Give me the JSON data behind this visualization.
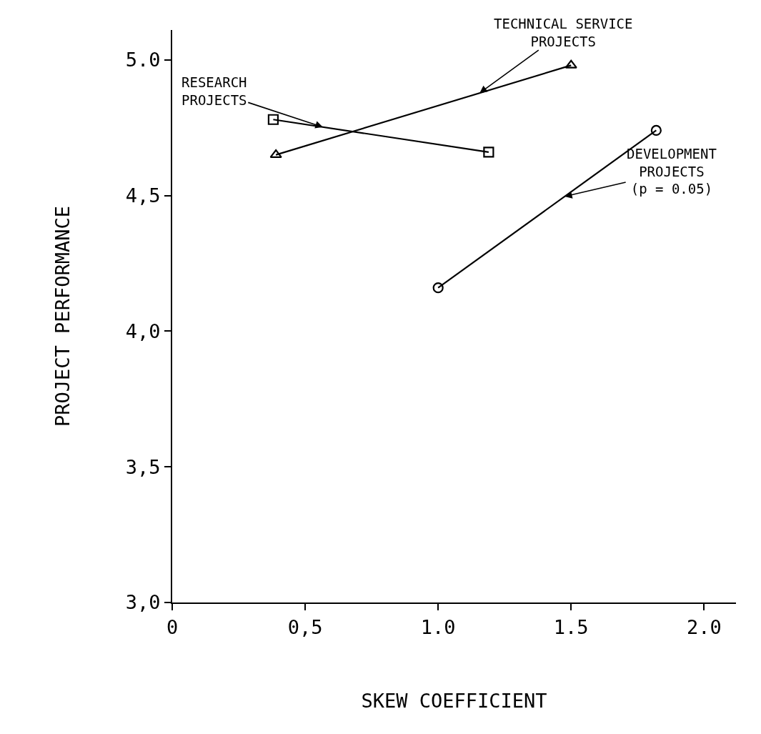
{
  "chart_data": {
    "type": "line",
    "xlabel": "SKEW COEFFICIENT",
    "ylabel": "PROJECT PERFORMANCE",
    "xlim": [
      0,
      2.12
    ],
    "ylim": [
      3.0,
      5.11
    ],
    "xticks": [
      {
        "value": 0,
        "label": "0"
      },
      {
        "value": 0.5,
        "label": "0,5"
      },
      {
        "value": 1.0,
        "label": "1.0"
      },
      {
        "value": 1.5,
        "label": "1.5"
      },
      {
        "value": 2.0,
        "label": "2.0"
      }
    ],
    "yticks": [
      {
        "value": 3.0,
        "label": "3,0"
      },
      {
        "value": 3.5,
        "label": "3,5"
      },
      {
        "value": 4.0,
        "label": "4,0"
      },
      {
        "value": 4.5,
        "label": "4,5"
      },
      {
        "value": 5.0,
        "label": "5.0"
      }
    ],
    "legend": false,
    "line_style": "solid",
    "series": [
      {
        "name": "RESEARCH\nPROJECTS",
        "color": "#000000",
        "marker": "square",
        "x": [
          0.38,
          1.19
        ],
        "values": [
          4.78,
          4.66
        ]
      },
      {
        "name": "TECHNICAL SERVICE\nPROJECTS",
        "color": "#000000",
        "marker": "triangle",
        "x": [
          0.39,
          1.5
        ],
        "values": [
          4.65,
          4.98
        ]
      },
      {
        "name": "DEVELOPMENT\nPROJECTS\n(p = 0.05)",
        "color": "#000000",
        "marker": "circle",
        "x": [
          1.0,
          1.82
        ],
        "values": [
          4.16,
          4.74
        ]
      }
    ]
  }
}
